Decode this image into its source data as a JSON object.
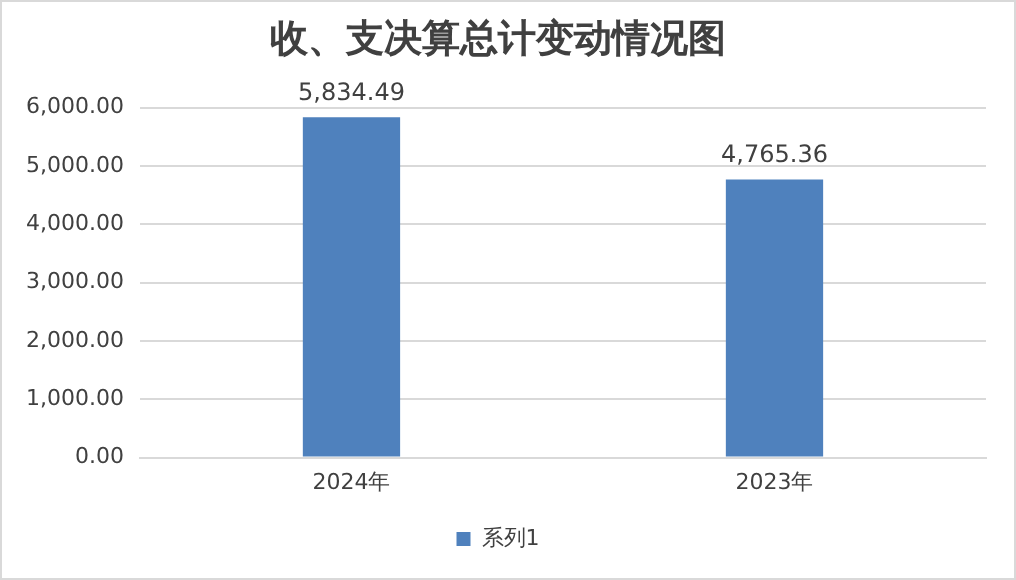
{
  "chart_data": {
    "type": "bar",
    "title": "收、支决算总计变动情况图",
    "categories": [
      "2024年",
      "2023年"
    ],
    "series": [
      {
        "name": "系列1",
        "color": "#4f81bd",
        "values": [
          5834.49,
          4765.36
        ],
        "value_labels": [
          "5,834.49",
          "4,765.36"
        ]
      }
    ],
    "ylim": [
      0,
      6000
    ],
    "yticks": [
      {
        "value": 0,
        "label": "0.00"
      },
      {
        "value": 1000,
        "label": "1,000.00"
      },
      {
        "value": 2000,
        "label": "2,000.00"
      },
      {
        "value": 3000,
        "label": "3,000.00"
      },
      {
        "value": 4000,
        "label": "4,000.00"
      },
      {
        "value": 5000,
        "label": "5,000.00"
      },
      {
        "value": 6000,
        "label": "6,000.00"
      }
    ],
    "grid": "y",
    "legend": "bottom"
  }
}
